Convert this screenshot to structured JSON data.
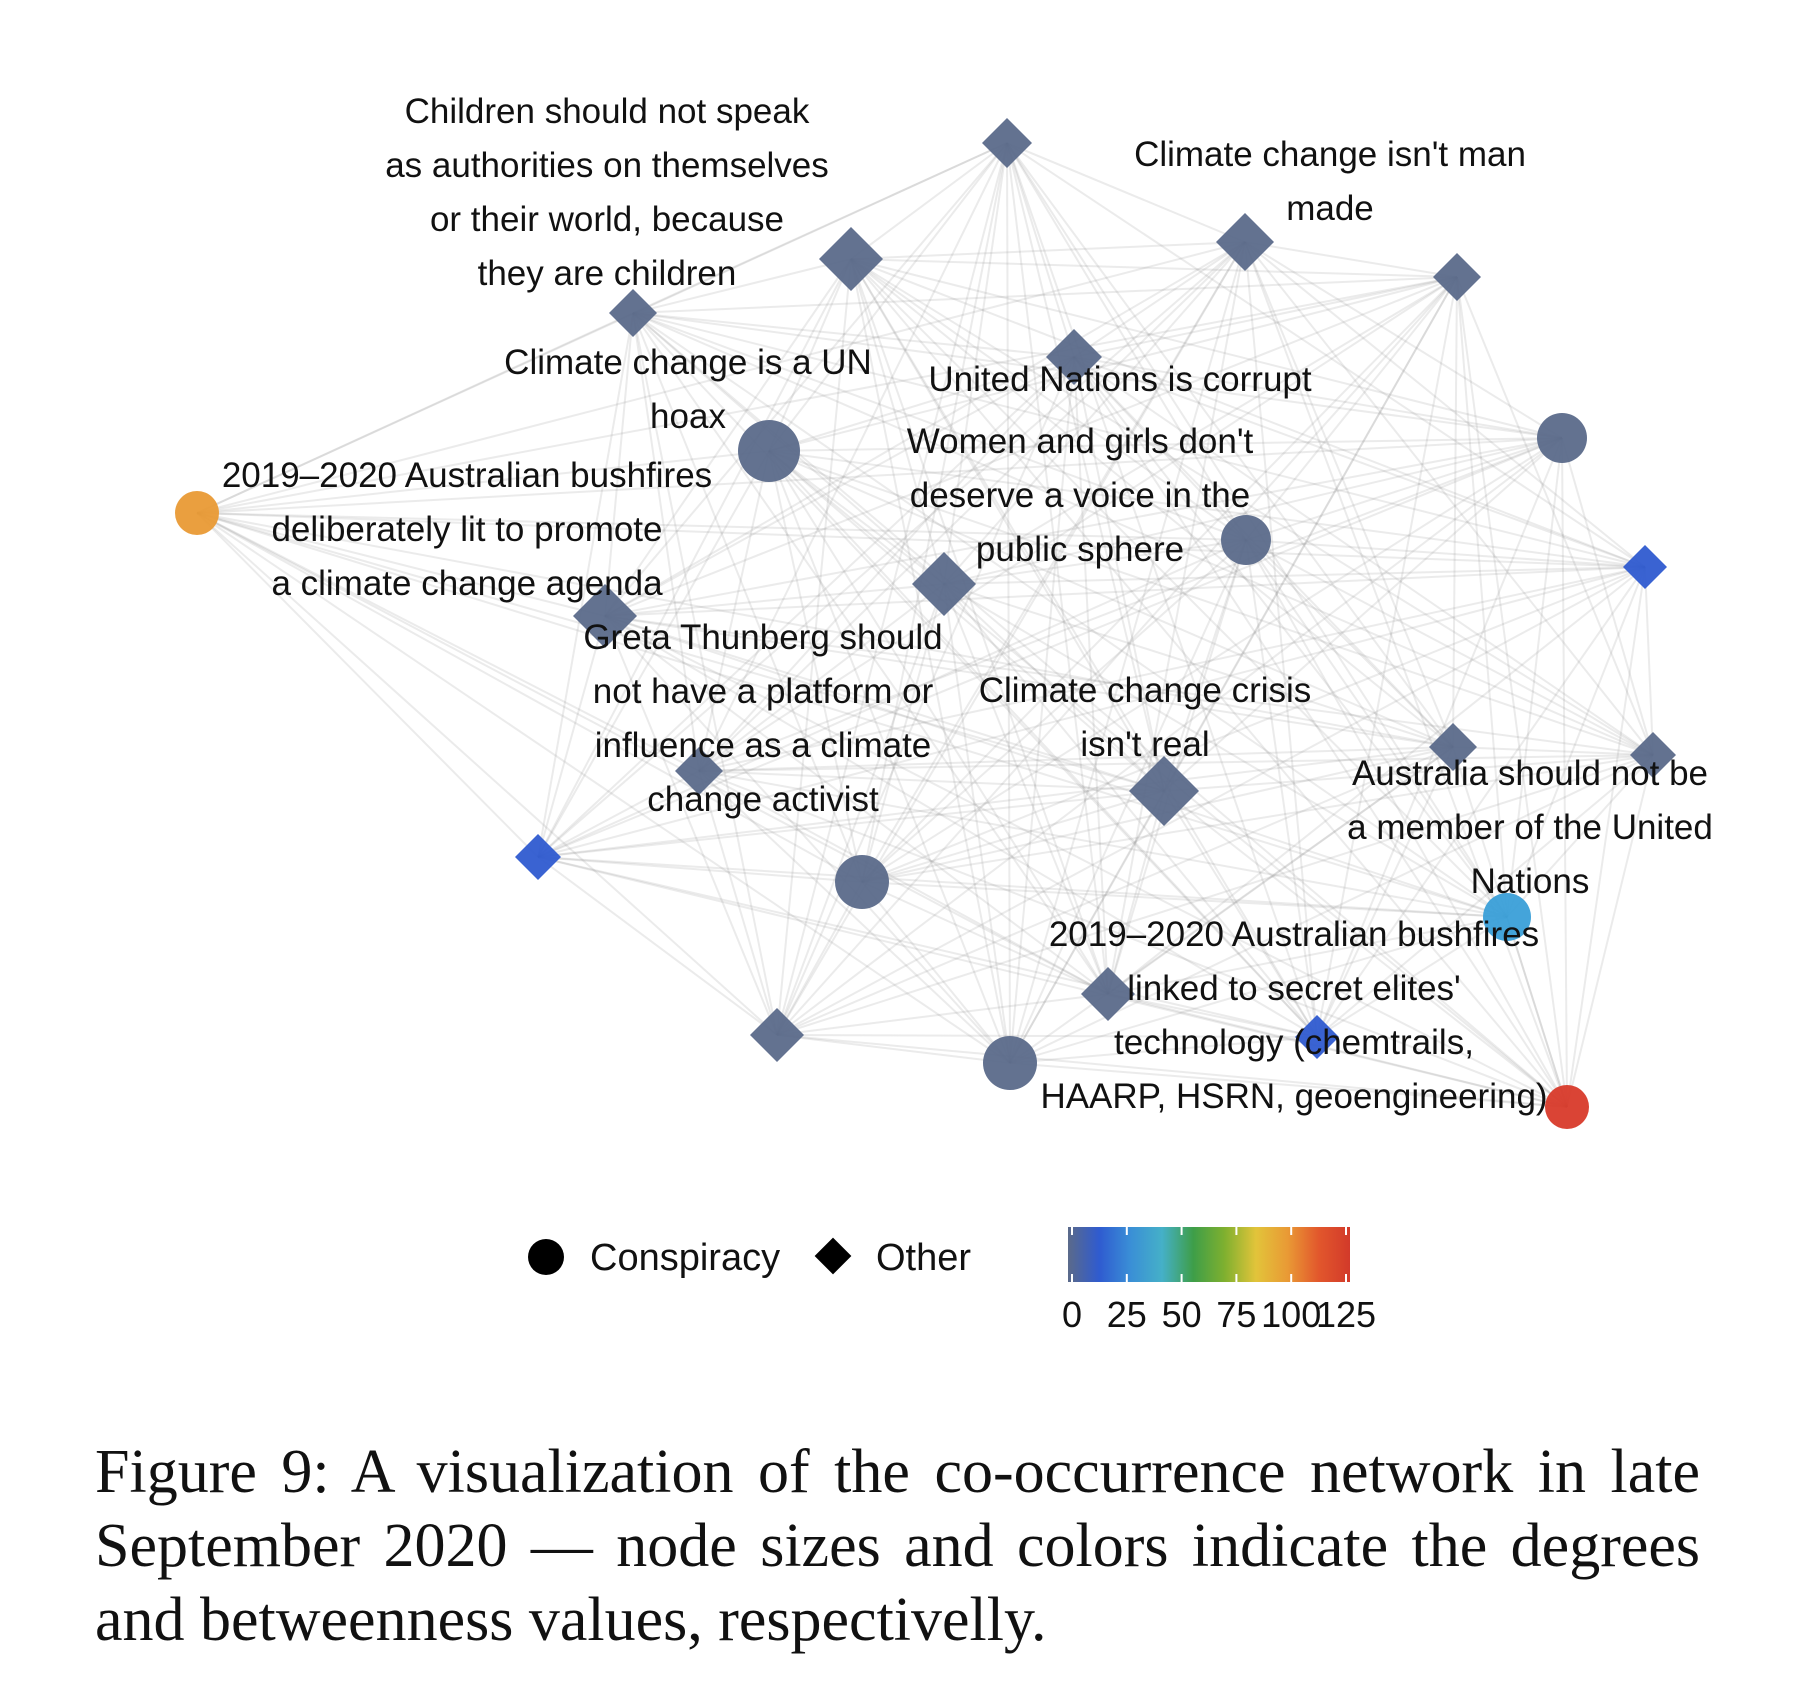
{
  "legend": {
    "shapes": [
      {
        "shape": "circle",
        "label": "Conspiracy"
      },
      {
        "shape": "diamond",
        "label": "Other"
      }
    ],
    "colorbar": {
      "ticks": [
        "0",
        "25",
        "50",
        "75",
        "100",
        "125"
      ],
      "stops": [
        "#5b6a8a",
        "#2f5bd0",
        "#3a8fd6",
        "#45b0c8",
        "#3e9e48",
        "#7fb02f",
        "#e2c43a",
        "#e99a35",
        "#e2572c",
        "#d23a2a"
      ]
    }
  },
  "labels": [
    {
      "node": "n_children",
      "lines": [
        "Children should not speak",
        "as authorities on themselves",
        "or their world, because",
        "they are children"
      ]
    },
    {
      "node": "n_manmade",
      "lines": [
        "Climate change isn't man",
        "made"
      ]
    },
    {
      "node": "n_unhoax",
      "lines": [
        "Climate change is a UN",
        "hoax"
      ]
    },
    {
      "node": "n_uncorrupt",
      "lines": [
        "United Nations is corrupt"
      ]
    },
    {
      "node": "n_women",
      "lines": [
        "Women and girls don't",
        "deserve a voice in the",
        "public sphere"
      ]
    },
    {
      "node": "n_bushfires_lit",
      "lines": [
        "2019–2020 Australian bushfires",
        "deliberately lit to promote",
        "a climate change agenda"
      ]
    },
    {
      "node": "n_greta",
      "lines": [
        "Greta Thunberg should",
        "not have a platform or",
        "influence as a climate",
        "change activist"
      ]
    },
    {
      "node": "n_crisis",
      "lines": [
        "Climate change crisis",
        "isn't real"
      ]
    },
    {
      "node": "n_australia_un",
      "lines": [
        "Australia should not be",
        "a member of the United",
        "Nations"
      ]
    },
    {
      "node": "n_bushfires_elites",
      "lines": [
        "2019–2020 Australian bushfires",
        "linked to secret elites'",
        "technology (chemtrails,",
        "HAARP, HSRN, geoengineering)"
      ]
    }
  ],
  "caption": "Figure 9: A visualization of the co-occurrence network in late September 2020 — node sizes and colors indicate the degrees and betweenness values, respectivelly."
}
